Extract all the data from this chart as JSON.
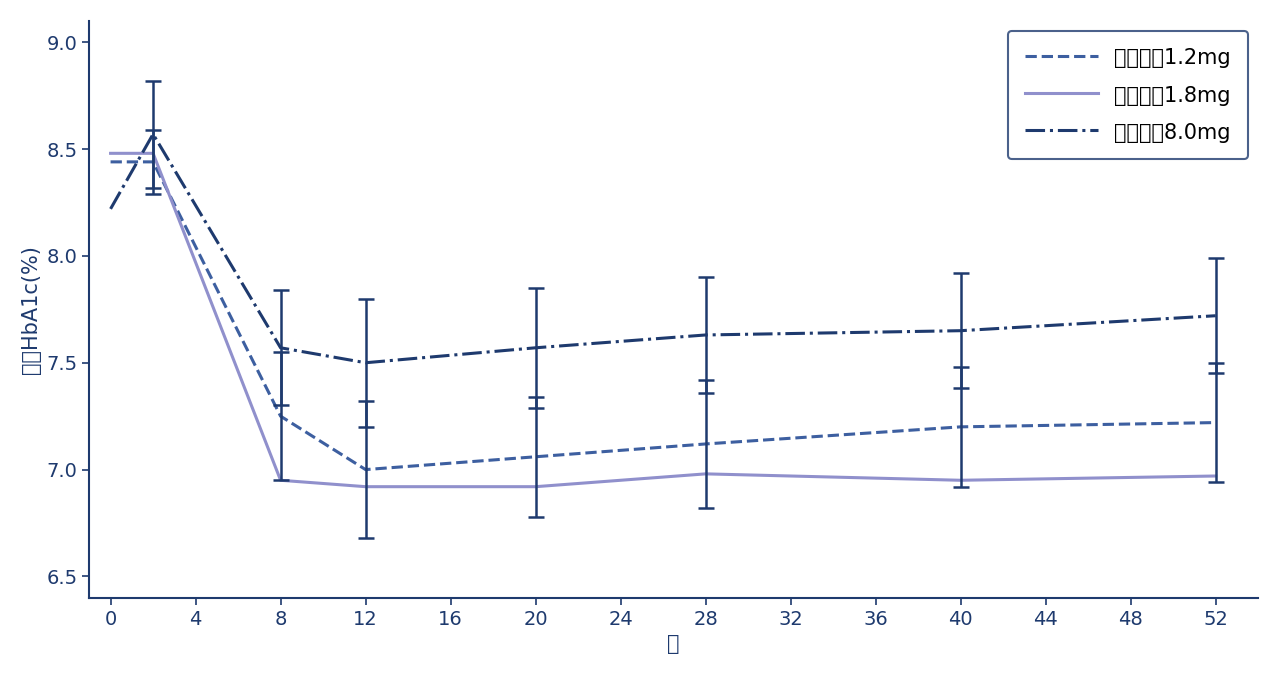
{
  "title": "",
  "xlabel": "周",
  "ylabel": "平均HbA1c(%)",
  "xlim": [
    -1,
    54
  ],
  "ylim": [
    6.4,
    9.1
  ],
  "xticks": [
    0,
    4,
    8,
    12,
    16,
    20,
    24,
    28,
    32,
    36,
    40,
    44,
    48,
    52
  ],
  "yticks": [
    6.5,
    7.0,
    7.5,
    8.0,
    8.5,
    9.0
  ],
  "background_color": "#ffffff",
  "dark_blue": "#1e3a6e",
  "medium_blue": "#3d5fa0",
  "light_purple": "#9090cc",
  "lira12_x": [
    0,
    2,
    8,
    12,
    20,
    28,
    40,
    52
  ],
  "lira12_y": [
    8.44,
    8.44,
    7.25,
    7.0,
    7.06,
    7.12,
    7.2,
    7.22
  ],
  "lira12_err_x": [
    2,
    8,
    12,
    20,
    28,
    40,
    52
  ],
  "lira12_err_y": [
    8.44,
    7.25,
    7.0,
    7.06,
    7.12,
    7.2,
    7.22
  ],
  "lira12_err_lo": [
    0.15,
    0.3,
    0.32,
    0.28,
    0.3,
    0.28,
    0.28
  ],
  "lira12_err_hi": [
    0.15,
    0.3,
    0.32,
    0.28,
    0.3,
    0.28,
    0.28
  ],
  "lira18_x": [
    0,
    2,
    8,
    12,
    20,
    28,
    40,
    52
  ],
  "lira18_y": [
    8.48,
    8.48,
    6.95,
    6.92,
    6.92,
    6.98,
    6.95,
    6.97
  ],
  "glim_x": [
    0,
    2,
    8,
    12,
    20,
    28,
    40,
    52
  ],
  "glim_y": [
    8.22,
    8.57,
    7.57,
    7.5,
    7.57,
    7.63,
    7.65,
    7.72
  ],
  "glim_err_x": [
    2,
    8,
    12,
    20,
    28,
    40,
    52
  ],
  "glim_err_y": [
    8.57,
    7.57,
    7.5,
    7.57,
    7.63,
    7.65,
    7.72
  ],
  "glim_err_lo": [
    0.25,
    0.27,
    0.3,
    0.28,
    0.27,
    0.27,
    0.27
  ],
  "glim_err_hi": [
    0.25,
    0.27,
    0.3,
    0.28,
    0.27,
    0.27,
    0.27
  ],
  "legend_labels": [
    "利拉鲁肽1.2mg",
    "利拉鲁肽1.8mg",
    "格列美脲8.0mg"
  ],
  "legend_fontsize": 15,
  "axis_fontsize": 15,
  "tick_fontsize": 14
}
